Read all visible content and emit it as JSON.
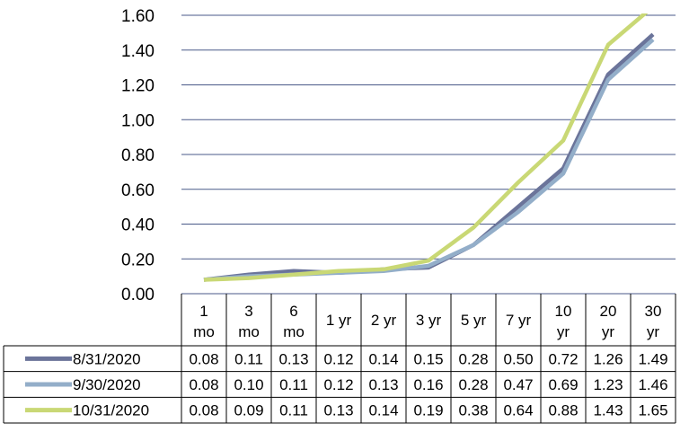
{
  "chart_data": {
    "type": "line",
    "categories": [
      [
        "1",
        "mo"
      ],
      [
        "3",
        "mo"
      ],
      [
        "6",
        "mo"
      ],
      [
        "1 yr"
      ],
      [
        "2 yr"
      ],
      [
        "3 yr"
      ],
      [
        "5 yr"
      ],
      [
        "7 yr"
      ],
      [
        "10",
        "yr"
      ],
      [
        "20",
        "yr"
      ],
      [
        "30",
        "yr"
      ]
    ],
    "series": [
      {
        "name": "8/31/2020",
        "color": "#6b749a",
        "values": [
          0.08,
          0.11,
          0.13,
          0.12,
          0.14,
          0.15,
          0.28,
          0.5,
          0.72,
          1.26,
          1.49
        ]
      },
      {
        "name": "9/30/2020",
        "color": "#93aec9",
        "values": [
          0.08,
          0.1,
          0.11,
          0.12,
          0.13,
          0.16,
          0.28,
          0.47,
          0.69,
          1.23,
          1.46
        ]
      },
      {
        "name": "10/31/2020",
        "color": "#c9d875",
        "values": [
          0.08,
          0.09,
          0.11,
          0.13,
          0.14,
          0.19,
          0.38,
          0.64,
          0.88,
          1.43,
          1.65
        ]
      }
    ],
    "value_labels": [
      [
        "0.08",
        "0.11",
        "0.13",
        "0.12",
        "0.14",
        "0.15",
        "0.28",
        "0.50",
        "0.72",
        "1.26",
        "1.49"
      ],
      [
        "0.08",
        "0.10",
        "0.11",
        "0.12",
        "0.13",
        "0.16",
        "0.28",
        "0.47",
        "0.69",
        "1.23",
        "1.46"
      ],
      [
        "0.08",
        "0.09",
        "0.11",
        "0.13",
        "0.14",
        "0.19",
        "0.38",
        "0.64",
        "0.88",
        "1.43",
        "1.65"
      ]
    ],
    "ylim": [
      0,
      1.6
    ],
    "yticks": [
      "0.00",
      "0.20",
      "0.40",
      "0.60",
      "0.80",
      "1.00",
      "1.20",
      "1.40",
      "1.60"
    ],
    "grid": true,
    "legend": "data-table-left",
    "title": "",
    "xlabel": "",
    "ylabel": ""
  }
}
